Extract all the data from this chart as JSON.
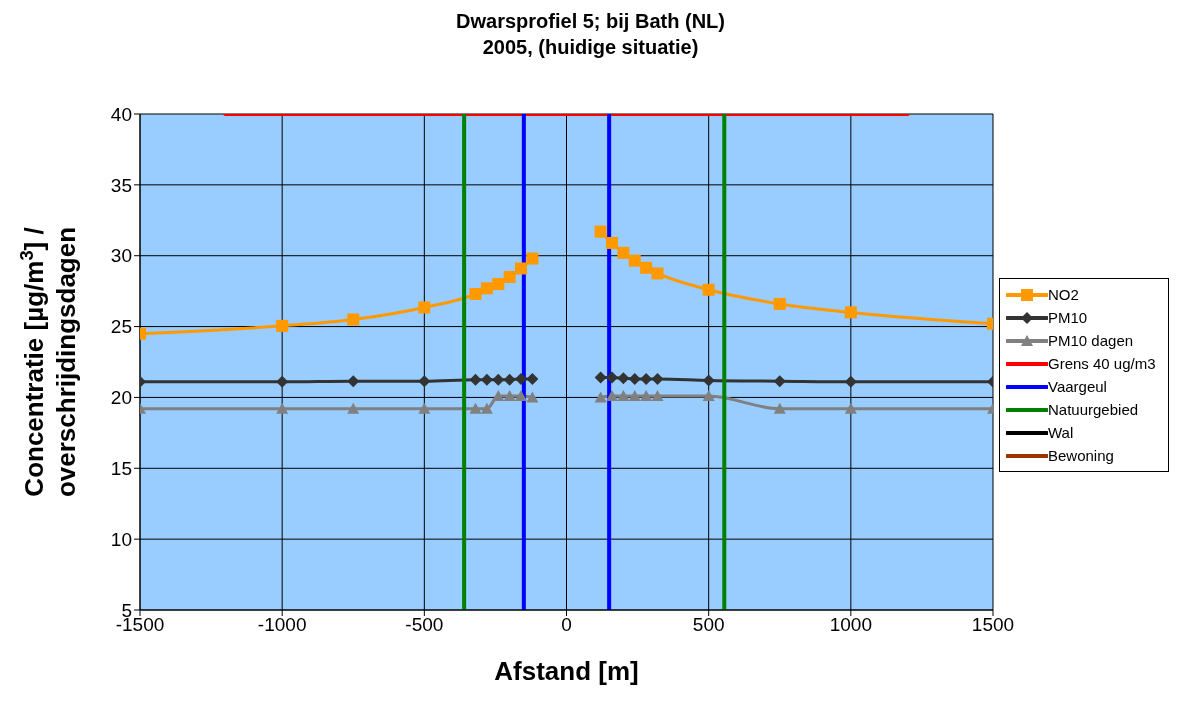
{
  "chart_data": {
    "type": "line",
    "title": "Dwarsprofiel 5; bij Bath (NL)",
    "subtitle": "2005, (huidige situatie)",
    "xlabel": "Afstand [m]",
    "ylabel": "Concentratie [µg/m$^{3}$] / overschrijdingsdagen",
    "x": [
      -1500,
      -1000,
      -750,
      -500,
      -320,
      -280,
      -240,
      -200,
      -160,
      -120,
      0,
      120,
      160,
      200,
      240,
      280,
      320,
      500,
      750,
      1000,
      1500
    ],
    "series": [
      {
        "name": "NO2",
        "color": "#ff9900",
        "marker": "square",
        "values": [
          24.5,
          25.05,
          25.5,
          26.35,
          27.3,
          27.7,
          28.0,
          28.5,
          29.1,
          29.8,
          null,
          31.7,
          30.9,
          30.2,
          29.65,
          29.15,
          28.75,
          27.6,
          26.6,
          26.0,
          25.2
        ]
      },
      {
        "name": "PM10",
        "color": "#333333",
        "marker": "diamond",
        "values": [
          21.1,
          21.1,
          21.15,
          21.15,
          21.25,
          21.25,
          21.25,
          21.25,
          21.3,
          21.3,
          null,
          21.4,
          21.4,
          21.35,
          21.3,
          21.3,
          21.3,
          21.2,
          21.15,
          21.1,
          21.1
        ]
      },
      {
        "name": "PM10 dagen",
        "color": "#808080",
        "marker": "triangle",
        "values": [
          19.2,
          19.2,
          19.2,
          19.2,
          19.2,
          19.2,
          20.1,
          20.1,
          20.1,
          20.0,
          null,
          20.0,
          20.1,
          20.1,
          20.1,
          20.1,
          20.1,
          20.1,
          19.2,
          19.2,
          19.2
        ]
      },
      {
        "name": "Grens 40 ug/m3",
        "color": "#ff0000",
        "marker": "none",
        "x": [
          -1200,
          1200
        ],
        "values": [
          40,
          40
        ]
      },
      {
        "name": "Vaargeul",
        "color": "#0000ff",
        "marker": "none",
        "x": [
          -150,
          -150,
          null,
          150,
          150
        ],
        "values": [
          5,
          40,
          null,
          40,
          5
        ]
      },
      {
        "name": "Natuurgebied",
        "color": "#008000",
        "marker": "none",
        "x": [
          -360,
          -360,
          null,
          555,
          555
        ],
        "values": [
          5,
          40,
          null,
          40,
          5
        ]
      },
      {
        "name": "Wal",
        "color": "#000000",
        "marker": "none",
        "values": [
          null,
          null,
          null,
          null,
          null,
          null,
          null,
          null,
          null,
          null,
          null,
          null,
          null,
          null,
          null,
          null,
          null,
          null,
          null,
          null,
          null
        ]
      },
      {
        "name": "Bewoning",
        "color": "#993300",
        "marker": "none",
        "values": [
          null,
          null,
          null,
          null,
          null,
          null,
          null,
          null,
          null,
          null,
          null,
          null,
          null,
          null,
          null,
          null,
          null,
          null,
          null,
          null,
          null
        ]
      }
    ],
    "xlim": [
      -1500,
      1500
    ],
    "xticks": [
      -1500,
      -1000,
      -500,
      0,
      500,
      1000,
      1500
    ],
    "ylim": [
      5,
      40
    ],
    "yticks": [
      5,
      10,
      15,
      20,
      25,
      30,
      35,
      40
    ],
    "grid": true,
    "legend": "right"
  }
}
